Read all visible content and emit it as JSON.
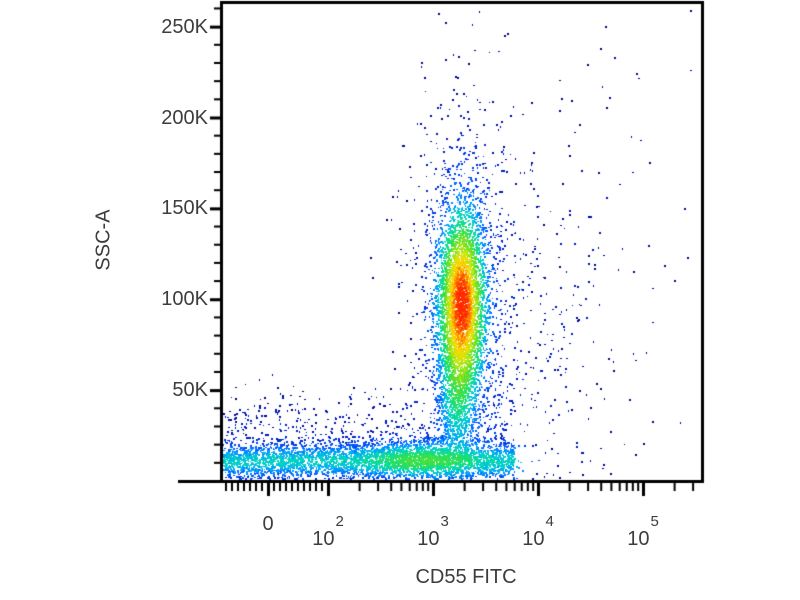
{
  "chart_data": {
    "type": "scatter",
    "subtype": "flow-cytometry-pseudocolor-density-plot",
    "title": "",
    "xlabel": "CD55 FITC",
    "ylabel": "SSC-A",
    "x_scale": "biexponential",
    "y_scale": "linear",
    "x_range": [
      -75,
      370000
    ],
    "y_range": [
      0,
      263000
    ],
    "grid": false,
    "legend": "none",
    "x_ticks": [
      {
        "v": 0,
        "label": "0"
      },
      {
        "v": 100,
        "base": "10",
        "exp": "2"
      },
      {
        "v": 1000,
        "base": "10",
        "exp": "3"
      },
      {
        "v": 10000,
        "base": "10",
        "exp": "4"
      },
      {
        "v": 100000,
        "base": "10",
        "exp": "5"
      }
    ],
    "y_ticks": [
      {
        "v": 50000,
        "label": "50K"
      },
      {
        "v": 100000,
        "label": "100K"
      },
      {
        "v": 150000,
        "label": "150K"
      },
      {
        "v": 200000,
        "label": "200K"
      },
      {
        "v": 250000,
        "label": "250K"
      }
    ],
    "y_minor_tick_step": 10000,
    "y_minor_tick_max": 260000,
    "populations": [
      {
        "name": "cd55-positive-main-cluster",
        "type": "gaussian",
        "n": 4200,
        "x_log_mean": 3.27,
        "x_log_sd": 0.115,
        "y_mean": 97000,
        "y_sd": 27000,
        "density_scale": 1
      },
      {
        "name": "cd55-positive-halo",
        "type": "gaussian",
        "n": 1300,
        "x_log_mean": 3.27,
        "x_log_sd": 0.24,
        "y_mean": 97000,
        "y_sd": 55000,
        "density_scale": 1
      },
      {
        "name": "bridge-population",
        "type": "gaussian",
        "n": 650,
        "x_log_mean": 3.22,
        "x_log_sd": 0.09,
        "y_mean": 42000,
        "y_sd": 16000,
        "density_scale": 0.5
      },
      {
        "name": "low-ssc-band",
        "type": "band",
        "n": 3600,
        "x_min": -75,
        "x_max": 6000,
        "y_mean": 11000,
        "y_sd": 5200,
        "density_scale": 0.45
      },
      {
        "name": "low-ssc-band-hotspot",
        "type": "gaussian",
        "n": 800,
        "x_log_mean": 2.85,
        "x_log_sd": 0.28,
        "y_mean": 12000,
        "y_sd": 6000,
        "density_scale": 0.5
      },
      {
        "name": "band-upper-scatter",
        "type": "band",
        "n": 700,
        "x_min": -75,
        "x_max": 5000,
        "y_mean": 24000,
        "y_sd": 13000,
        "density_scale": 0.3
      },
      {
        "name": "right-sparse-scatter",
        "type": "gaussian",
        "n": 400,
        "x_log_mean": 3.9,
        "x_log_sd": 0.45,
        "y_mean": 80000,
        "y_sd": 55000,
        "density_scale": 1
      },
      {
        "name": "stray-events",
        "type": "band",
        "n": 60,
        "x_min": 800,
        "x_max": 300000,
        "y_mean": 150000,
        "y_sd": 90000,
        "density_scale": 1
      }
    ],
    "colormap": [
      {
        "v": 0.0,
        "color": "#000080"
      },
      {
        "v": 0.14,
        "color": "#0020c8"
      },
      {
        "v": 0.26,
        "color": "#0050ff"
      },
      {
        "v": 0.38,
        "color": "#00a0ff"
      },
      {
        "v": 0.48,
        "color": "#00d8c0"
      },
      {
        "v": 0.58,
        "color": "#20e060"
      },
      {
        "v": 0.68,
        "color": "#70e020"
      },
      {
        "v": 0.78,
        "color": "#c8e810"
      },
      {
        "v": 0.86,
        "color": "#ffd800"
      },
      {
        "v": 0.93,
        "color": "#ff8800"
      },
      {
        "v": 1.0,
        "color": "#ff2800"
      }
    ],
    "frame_color": "#000000",
    "background_color": "#ffffff"
  }
}
